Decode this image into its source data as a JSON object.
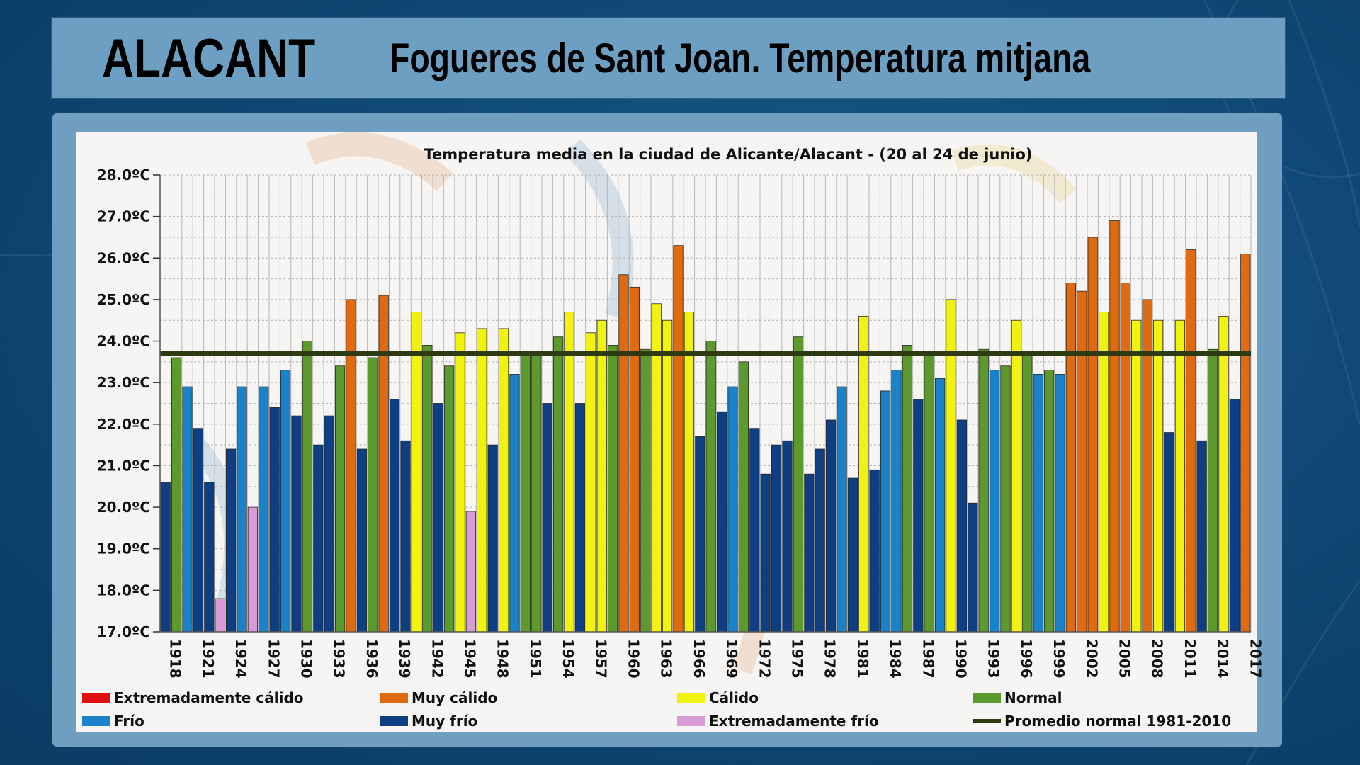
{
  "header": {
    "city": "ALACANT",
    "subtitle": "Fogueres de Sant Joan. Temperatura mitjana"
  },
  "colors": {
    "background": "#0f4a78",
    "panel": "#6f9ec1",
    "extremely_warm": "#e01010",
    "very_warm": "#e06a10",
    "warm": "#f2f20f",
    "normal": "#5c9a2e",
    "cold": "#1a82c8",
    "very_cold": "#0e3f82",
    "extremely_cold": "#d79bd6",
    "average_line": "#2e3a10"
  },
  "chart_data": {
    "type": "bar",
    "title": "Temperatura media en la ciudad de Alicante/Alacant - (20 al 24 de junio)",
    "ylim": [
      17,
      28
    ],
    "yticks": [
      28,
      27,
      26,
      25,
      24,
      23,
      22,
      21,
      20,
      19,
      18,
      17
    ],
    "ytick_labels": [
      "28.0ºC",
      "27.0ºC",
      "26.0ºC",
      "25.0ºC",
      "24.0ºC",
      "23.0ºC",
      "22.0ºC",
      "21.0ºC",
      "20.0ºC",
      "19.0ºC",
      "18.0ºC",
      "17.0ºC"
    ],
    "x_start": 1918,
    "x_end": 2017,
    "xtick_labels": [
      "1918",
      "1921",
      "1924",
      "1927",
      "1930",
      "1933",
      "1936",
      "1939",
      "1942",
      "1945",
      "1948",
      "1951",
      "1954",
      "1957",
      "1960",
      "1963",
      "1966",
      "1969",
      "1972",
      "1975",
      "1978",
      "1981",
      "1984",
      "1987",
      "1990",
      "1993",
      "1996",
      "1999",
      "2002",
      "2005",
      "2008",
      "2011",
      "2014",
      "2017"
    ],
    "grid": true,
    "bars": [
      {
        "year": 1918,
        "value": 20.6,
        "cat": "very_cold"
      },
      {
        "year": 1919,
        "value": 23.6,
        "cat": "normal"
      },
      {
        "year": 1920,
        "value": 22.9,
        "cat": "cold"
      },
      {
        "year": 1921,
        "value": 21.9,
        "cat": "very_cold"
      },
      {
        "year": 1922,
        "value": 20.6,
        "cat": "very_cold"
      },
      {
        "year": 1923,
        "value": 17.8,
        "cat": "extremely_cold"
      },
      {
        "year": 1924,
        "value": 21.4,
        "cat": "very_cold"
      },
      {
        "year": 1925,
        "value": 22.9,
        "cat": "cold"
      },
      {
        "year": 1926,
        "value": 20.0,
        "cat": "extremely_cold"
      },
      {
        "year": 1927,
        "value": 22.9,
        "cat": "cold"
      },
      {
        "year": 1928,
        "value": 22.4,
        "cat": "very_cold"
      },
      {
        "year": 1929,
        "value": 23.3,
        "cat": "cold"
      },
      {
        "year": 1930,
        "value": 22.2,
        "cat": "very_cold"
      },
      {
        "year": 1931,
        "value": 24.0,
        "cat": "normal"
      },
      {
        "year": 1932,
        "value": 21.5,
        "cat": "very_cold"
      },
      {
        "year": 1933,
        "value": 22.2,
        "cat": "very_cold"
      },
      {
        "year": 1934,
        "value": 23.4,
        "cat": "normal"
      },
      {
        "year": 1935,
        "value": 25.0,
        "cat": "very_warm"
      },
      {
        "year": 1936,
        "value": 21.4,
        "cat": "very_cold"
      },
      {
        "year": 1937,
        "value": 23.6,
        "cat": "normal"
      },
      {
        "year": 1938,
        "value": 25.1,
        "cat": "very_warm"
      },
      {
        "year": 1939,
        "value": 22.6,
        "cat": "very_cold"
      },
      {
        "year": 1940,
        "value": 21.6,
        "cat": "very_cold"
      },
      {
        "year": 1941,
        "value": 24.7,
        "cat": "warm"
      },
      {
        "year": 1942,
        "value": 23.9,
        "cat": "normal"
      },
      {
        "year": 1943,
        "value": 22.5,
        "cat": "very_cold"
      },
      {
        "year": 1944,
        "value": 23.4,
        "cat": "normal"
      },
      {
        "year": 1945,
        "value": 24.2,
        "cat": "warm"
      },
      {
        "year": 1946,
        "value": 19.9,
        "cat": "extremely_cold"
      },
      {
        "year": 1947,
        "value": 24.3,
        "cat": "warm"
      },
      {
        "year": 1948,
        "value": 21.5,
        "cat": "very_cold"
      },
      {
        "year": 1949,
        "value": 24.3,
        "cat": "warm"
      },
      {
        "year": 1950,
        "value": 23.2,
        "cat": "cold"
      },
      {
        "year": 1951,
        "value": 23.7,
        "cat": "normal"
      },
      {
        "year": 1952,
        "value": 23.7,
        "cat": "normal"
      },
      {
        "year": 1953,
        "value": 22.5,
        "cat": "very_cold"
      },
      {
        "year": 1954,
        "value": 24.1,
        "cat": "normal"
      },
      {
        "year": 1955,
        "value": 24.7,
        "cat": "warm"
      },
      {
        "year": 1956,
        "value": 22.5,
        "cat": "very_cold"
      },
      {
        "year": 1957,
        "value": 24.2,
        "cat": "warm"
      },
      {
        "year": 1958,
        "value": 24.5,
        "cat": "warm"
      },
      {
        "year": 1959,
        "value": 23.9,
        "cat": "normal"
      },
      {
        "year": 1960,
        "value": 25.6,
        "cat": "very_warm"
      },
      {
        "year": 1961,
        "value": 25.3,
        "cat": "very_warm"
      },
      {
        "year": 1962,
        "value": 23.8,
        "cat": "normal"
      },
      {
        "year": 1963,
        "value": 24.9,
        "cat": "warm"
      },
      {
        "year": 1964,
        "value": 24.5,
        "cat": "warm"
      },
      {
        "year": 1965,
        "value": 26.3,
        "cat": "very_warm"
      },
      {
        "year": 1966,
        "value": 24.7,
        "cat": "warm"
      },
      {
        "year": 1967,
        "value": 21.7,
        "cat": "very_cold"
      },
      {
        "year": 1968,
        "value": 24.0,
        "cat": "normal"
      },
      {
        "year": 1969,
        "value": 22.3,
        "cat": "very_cold"
      },
      {
        "year": 1970,
        "value": 22.9,
        "cat": "cold"
      },
      {
        "year": 1971,
        "value": 23.5,
        "cat": "normal"
      },
      {
        "year": 1972,
        "value": 21.9,
        "cat": "very_cold"
      },
      {
        "year": 1973,
        "value": 20.8,
        "cat": "very_cold"
      },
      {
        "year": 1974,
        "value": 21.5,
        "cat": "very_cold"
      },
      {
        "year": 1975,
        "value": 21.6,
        "cat": "very_cold"
      },
      {
        "year": 1976,
        "value": 24.1,
        "cat": "normal"
      },
      {
        "year": 1977,
        "value": 20.8,
        "cat": "very_cold"
      },
      {
        "year": 1978,
        "value": 21.4,
        "cat": "very_cold"
      },
      {
        "year": 1979,
        "value": 22.1,
        "cat": "very_cold"
      },
      {
        "year": 1980,
        "value": 22.9,
        "cat": "cold"
      },
      {
        "year": 1981,
        "value": 20.7,
        "cat": "very_cold"
      },
      {
        "year": 1982,
        "value": 24.6,
        "cat": "warm"
      },
      {
        "year": 1983,
        "value": 20.9,
        "cat": "very_cold"
      },
      {
        "year": 1984,
        "value": 22.8,
        "cat": "cold"
      },
      {
        "year": 1985,
        "value": 23.3,
        "cat": "cold"
      },
      {
        "year": 1986,
        "value": 23.9,
        "cat": "normal"
      },
      {
        "year": 1987,
        "value": 22.6,
        "cat": "very_cold"
      },
      {
        "year": 1988,
        "value": 23.7,
        "cat": "normal"
      },
      {
        "year": 1989,
        "value": 23.1,
        "cat": "cold"
      },
      {
        "year": 1990,
        "value": 25.0,
        "cat": "warm"
      },
      {
        "year": 1991,
        "value": 22.1,
        "cat": "very_cold"
      },
      {
        "year": 1992,
        "value": 20.1,
        "cat": "very_cold"
      },
      {
        "year": 1993,
        "value": 23.8,
        "cat": "normal"
      },
      {
        "year": 1994,
        "value": 23.3,
        "cat": "cold"
      },
      {
        "year": 1995,
        "value": 23.4,
        "cat": "normal"
      },
      {
        "year": 1996,
        "value": 24.5,
        "cat": "warm"
      },
      {
        "year": 1997,
        "value": 23.7,
        "cat": "normal"
      },
      {
        "year": 1998,
        "value": 23.2,
        "cat": "cold"
      },
      {
        "year": 1999,
        "value": 23.3,
        "cat": "normal"
      },
      {
        "year": 2000,
        "value": 23.2,
        "cat": "cold"
      },
      {
        "year": 2001,
        "value": 25.4,
        "cat": "very_warm"
      },
      {
        "year": 2002,
        "value": 25.2,
        "cat": "very_warm"
      },
      {
        "year": 2003,
        "value": 26.5,
        "cat": "very_warm"
      },
      {
        "year": 2004,
        "value": 24.7,
        "cat": "warm"
      },
      {
        "year": 2005,
        "value": 26.9,
        "cat": "very_warm"
      },
      {
        "year": 2006,
        "value": 25.4,
        "cat": "very_warm"
      },
      {
        "year": 2007,
        "value": 24.5,
        "cat": "warm"
      },
      {
        "year": 2008,
        "value": 25.0,
        "cat": "very_warm"
      },
      {
        "year": 2009,
        "value": 24.5,
        "cat": "warm"
      },
      {
        "year": 2010,
        "value": 21.8,
        "cat": "very_cold"
      },
      {
        "year": 2011,
        "value": 24.5,
        "cat": "warm"
      },
      {
        "year": 2012,
        "value": 26.2,
        "cat": "very_warm"
      },
      {
        "year": 2013,
        "value": 21.6,
        "cat": "very_cold"
      },
      {
        "year": 2014,
        "value": 23.8,
        "cat": "normal"
      },
      {
        "year": 2015,
        "value": 24.6,
        "cat": "warm"
      },
      {
        "year": 2016,
        "value": 22.6,
        "cat": "very_cold"
      },
      {
        "year": 2017,
        "value": 26.1,
        "cat": "very_warm"
      }
    ],
    "average_line": {
      "value": 23.7,
      "label": "Promedio normal 1981-2010"
    },
    "legend": [
      {
        "cat": "extremely_warm",
        "label": "Extremadamente cálido",
        "type": "box"
      },
      {
        "cat": "very_warm",
        "label": "Muy cálido",
        "type": "box"
      },
      {
        "cat": "warm",
        "label": "Cálido",
        "type": "box"
      },
      {
        "cat": "normal",
        "label": "Normal",
        "type": "box"
      },
      {
        "cat": "cold",
        "label": "Frío",
        "type": "box"
      },
      {
        "cat": "very_cold",
        "label": "Muy frío",
        "type": "box"
      },
      {
        "cat": "extremely_cold",
        "label": "Extremadamente frío",
        "type": "box"
      },
      {
        "cat": "average_line",
        "label": "Promedio normal 1981-2010",
        "type": "line"
      }
    ],
    "legend_position": "bottom"
  }
}
